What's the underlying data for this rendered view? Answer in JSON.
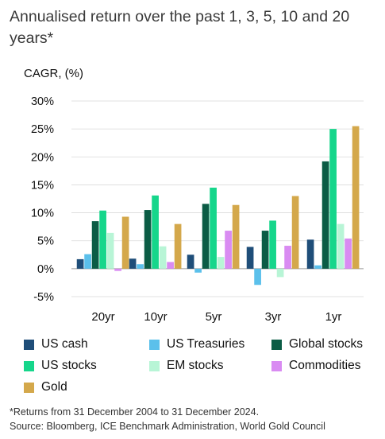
{
  "title": "Annualised return over the past 1, 3, 5, 10 and 20 years*",
  "footnote": "*Returns from 31 December 2004 to 31 December 2024.",
  "source": "Source: Bloomberg, ICE Benchmark Administration, World Gold Council",
  "chart_data": {
    "type": "bar",
    "ylabel": "CAGR, (%)",
    "ylim": [
      -5,
      30
    ],
    "yticks": [
      "30%",
      "25%",
      "20%",
      "15%",
      "10%",
      "5%",
      "0%",
      "-5%"
    ],
    "ytick_values": [
      30,
      25,
      20,
      15,
      10,
      5,
      0,
      -5
    ],
    "grid": true,
    "legend_position": "bottom",
    "categories": [
      "20yr",
      "10yr",
      "5yr",
      "3yr",
      "1yr"
    ],
    "series": [
      {
        "name": "US cash",
        "color": "#1f4e79",
        "values": [
          1.7,
          1.8,
          2.5,
          3.9,
          5.2
        ]
      },
      {
        "name": "US Treasuries",
        "color": "#5bc0eb",
        "values": [
          2.6,
          0.8,
          -0.7,
          -2.9,
          0.6
        ]
      },
      {
        "name": "Global stocks",
        "color": "#0b5c45",
        "values": [
          8.5,
          10.5,
          11.6,
          6.8,
          19.2
        ]
      },
      {
        "name": "US stocks",
        "color": "#16d68b",
        "values": [
          10.4,
          13.1,
          14.5,
          8.6,
          25.0
        ]
      },
      {
        "name": "EM stocks",
        "color": "#b8f5d6",
        "values": [
          6.4,
          4.0,
          2.1,
          -1.5,
          8.0
        ]
      },
      {
        "name": "Commodities",
        "color": "#d98bf2",
        "values": [
          -0.4,
          1.2,
          6.8,
          4.1,
          5.4
        ]
      },
      {
        "name": "Gold",
        "color": "#d4a84b",
        "values": [
          9.3,
          8.0,
          11.4,
          13.0,
          25.5
        ]
      }
    ]
  }
}
